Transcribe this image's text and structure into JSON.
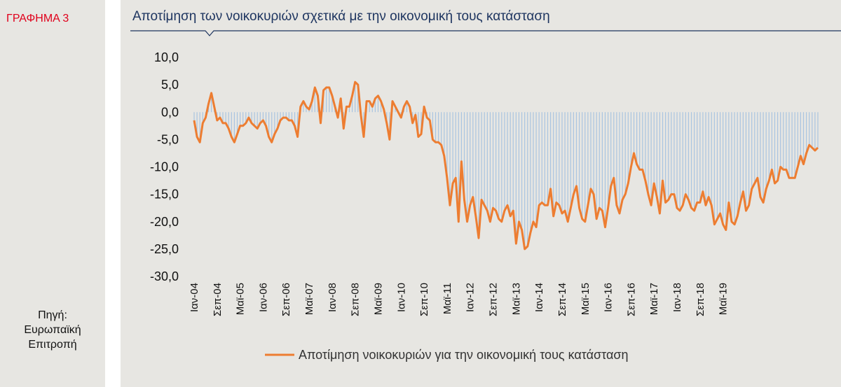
{
  "figure_label": "ΓΡΑΦΗΜΑ 3",
  "source": {
    "line1": "Πηγή:",
    "line2": "Ευρωπαϊκή",
    "line3": "Επιτροπή"
  },
  "colors": {
    "line": "#ed7d31",
    "bars": "#a9c4e0",
    "title": "#1e3560",
    "label": "#e0001b",
    "panel": "#e7e6e2"
  },
  "chart_data": {
    "type": "line",
    "title": "Αποτίμηση των νοικοκυριών σχετικά με την οικονομική τους κατάσταση",
    "ylim": [
      -30,
      10
    ],
    "yticks": [
      "10,0",
      "5,0",
      "0,0",
      "-5,0",
      "-10,0",
      "-15,0",
      "-20,0",
      "-25,0",
      "-30,0"
    ],
    "xticks": [
      "Ιαν-04",
      "Σεπ-04",
      "Μαϊ-05",
      "Ιαν-06",
      "Σεπ-06",
      "Μαϊ-07",
      "Ιαν-08",
      "Σεπ-08",
      "Μαϊ-09",
      "Ιαν-10",
      "Σεπ-10",
      "Μαϊ-11",
      "Ιαν-12",
      "Σεπ-12",
      "Μαϊ-13",
      "Ιαν-14",
      "Σεπ-14",
      "Μαϊ-15",
      "Ιαν-16",
      "Σεπ-16",
      "Μαϊ-17",
      "Ιαν-18",
      "Σεπ-18",
      "Μαϊ-19"
    ],
    "legend": "Αποτίμηση νοικοκυριών  για την οικονομική  τους κατάσταση",
    "x_start": "Ιαν-04",
    "x_end": "Μαϊ-19",
    "frequency": "monthly",
    "series": [
      {
        "name": "Αποτίμηση νοικοκυριών  για την οικονομική  τους κατάσταση",
        "values": [
          -1.5,
          -4.5,
          -5.5,
          -2.0,
          -1.0,
          1.5,
          3.5,
          1.0,
          -1.5,
          -1.0,
          -2.0,
          -2.0,
          -3.0,
          -4.5,
          -5.5,
          -4.0,
          -2.5,
          -2.5,
          -2.0,
          -1.0,
          -2.0,
          -2.5,
          -3.0,
          -2.0,
          -1.5,
          -2.5,
          -4.5,
          -5.5,
          -4.0,
          -3.0,
          -1.5,
          -1.0,
          -1.0,
          -1.5,
          -1.5,
          -2.5,
          -4.5,
          1.0,
          2.0,
          1.0,
          0.5,
          2.0,
          4.5,
          3.0,
          -2.0,
          4.0,
          4.5,
          4.5,
          3.0,
          1.0,
          -1.0,
          2.5,
          -3.0,
          1.0,
          1.0,
          3.0,
          5.5,
          5.0,
          -0.5,
          -4.5,
          2.0,
          2.0,
          1.0,
          2.5,
          3.0,
          2.0,
          0.5,
          -2.0,
          -5.0,
          2.0,
          1.0,
          0.0,
          -1.0,
          1.0,
          2.0,
          1.0,
          -2.0,
          -0.5,
          -4.5,
          -4.0,
          1.0,
          -1.0,
          -1.5,
          -5.0,
          -5.5,
          -5.5,
          -6.0,
          -8.0,
          -12.0,
          -17.0,
          -13.0,
          -12.0,
          -20.0,
          -9.0,
          -16.0,
          -20.0,
          -17.0,
          -15.5,
          -19.0,
          -23.0,
          -16.0,
          -17.0,
          -18.0,
          -20.0,
          -17.5,
          -18.0,
          -19.5,
          -20.0,
          -18.0,
          -17.0,
          -19.0,
          -18.0,
          -24.0,
          -20.0,
          -21.5,
          -25.0,
          -24.5,
          -22.0,
          -20.0,
          -21.0,
          -17.0,
          -16.5,
          -17.0,
          -17.0,
          -14.0,
          -19.0,
          -16.5,
          -17.0,
          -18.5,
          -18.0,
          -20.0,
          -17.5,
          -15.0,
          -13.5,
          -17.5,
          -19.5,
          -20.0,
          -17.0,
          -14.0,
          -15.0,
          -19.5,
          -17.5,
          -18.0,
          -21.0,
          -17.5,
          -13.5,
          -12.0,
          -17.0,
          -18.5,
          -16.0,
          -15.0,
          -13.0,
          -10.0,
          -7.5,
          -9.5,
          -10.5,
          -10.5,
          -12.5,
          -15.0,
          -17.0,
          -13.0,
          -15.5,
          -18.5,
          -12.5,
          -16.5,
          -16.0,
          -15.0,
          -15.0,
          -17.5,
          -18.0,
          -17.0,
          -15.0,
          -16.0,
          -17.5,
          -18.0,
          -16.5,
          -16.5,
          -14.5,
          -17.0,
          -15.5,
          -17.0,
          -20.5,
          -19.5,
          -18.5,
          -20.5,
          -21.5,
          -16.5,
          -20.0,
          -20.5,
          -19.0,
          -16.5,
          -14.5,
          -18.0,
          -17.0,
          -14.0,
          -13.0,
          -12.0,
          -15.5,
          -16.5,
          -14.0,
          -12.5,
          -10.5,
          -13.0,
          -12.5,
          -10.0,
          -10.5,
          -10.5,
          -12.0,
          -12.0,
          -12.0,
          -10.0,
          -8.0,
          -9.5,
          -7.5,
          -6.0,
          -6.5,
          -7.0,
          -6.5
        ]
      }
    ]
  }
}
